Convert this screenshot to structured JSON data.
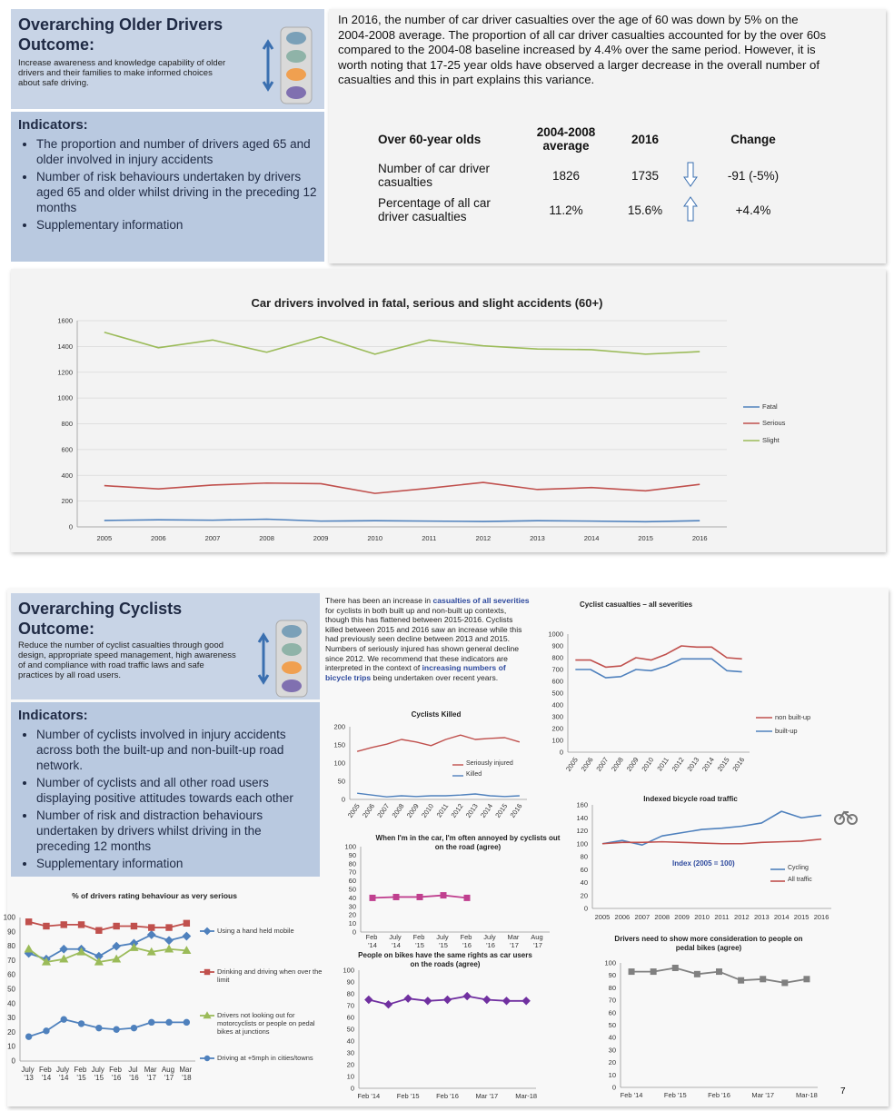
{
  "older_drivers": {
    "title": "Overarching Older Drivers Outcome:",
    "description": "Increase awareness and knowledge capability of older drivers and their families to make informed choices about safe driving.",
    "indicators_heading": "Indicators:",
    "indicators": [
      "The proportion and number of drivers aged 65 and older involved in injury accidents",
      "Number of risk behaviours undertaken by drivers aged 65 and older whilst driving in the preceding 12 months",
      "Supplementary information"
    ],
    "summary": "In 2016, the number of car driver casualties over the age of 60 was down by 5% on the 2004-2008 average. The proportion of all car driver casualties accounted for by the over 60s compared to the 2004-08 baseline increased by 4.4% over the same period.  However, it is worth noting that 17-25 year olds have observed a larger decrease in the overall number of casualties and this in part explains this variance.",
    "table": {
      "header": [
        "Over 60-year olds",
        "2004-2008 average",
        "2016",
        "Change"
      ],
      "rows": [
        [
          "Number of car driver casualties",
          "1826",
          "1735",
          "-91 (-5%)"
        ],
        [
          "Percentage of all car driver casualties",
          "11.2%",
          "15.6%",
          "+4.4%"
        ]
      ]
    }
  },
  "cyclists": {
    "title": "Overarching Cyclists Outcome:",
    "description": "Reduce the number of cyclist casualties through good design, appropriate speed management, high awareness of and compliance with road traffic laws and safe practices by all road users.",
    "indicators_heading": "Indicators:",
    "indicators": [
      "Number of cyclists involved in injury accidents across both the built-up and non-built-up road network.",
      "Number of cyclists and all other road users displaying positive attitudes towards each other",
      "Number of risk and distraction behaviours undertaken by drivers whilst driving in the preceding 12 months",
      "Supplementary information"
    ],
    "summary_parts": [
      "There has been an increase in ",
      "casualties of all severities",
      " for cyclists in both built up and non-built up contexts, though this has flattened between 2015-2016. Cyclists killed between 2015 and 2016 saw an increase while this had previously seen decline between 2013 and 2015. Numbers of seriously injured has shown general decline since 2012. We recommend that these indicators are interpreted in the context of ",
      "increasing numbers of bicycle trips",
      " being undertaken over recent years."
    ]
  },
  "page_number": "7",
  "chart_data": [
    {
      "type": "line",
      "title": "Car drivers involved in fatal, serious and slight accidents (60+)",
      "categories": [
        "2005",
        "2006",
        "2007",
        "2008",
        "2009",
        "2010",
        "2011",
        "2012",
        "2013",
        "2014",
        "2015",
        "2016"
      ],
      "series": [
        {
          "name": "Fatal",
          "color": "#4f81bd",
          "values": [
            50,
            55,
            52,
            60,
            45,
            48,
            45,
            42,
            48,
            45,
            40,
            48
          ]
        },
        {
          "name": "Serious",
          "color": "#c0504d",
          "values": [
            320,
            295,
            325,
            340,
            335,
            260,
            300,
            345,
            290,
            305,
            280,
            330
          ]
        },
        {
          "name": "Slight",
          "color": "#9bbb59",
          "values": [
            1510,
            1390,
            1450,
            1355,
            1475,
            1340,
            1450,
            1405,
            1380,
            1375,
            1340,
            1360
          ]
        }
      ],
      "ylim": [
        0,
        1600
      ],
      "yticks": [
        0,
        200,
        400,
        600,
        800,
        1000,
        1200,
        1400,
        1600
      ],
      "grid": true,
      "legend": "right"
    },
    {
      "type": "line",
      "title": "Cyclist casualties – all severities",
      "categories": [
        "2005",
        "2006",
        "2007",
        "2008",
        "2009",
        "2010",
        "2011",
        "2012",
        "2013",
        "2014",
        "2015",
        "2016"
      ],
      "series": [
        {
          "name": "non built-up",
          "color": "#c0504d",
          "values": [
            780,
            780,
            720,
            730,
            800,
            780,
            830,
            900,
            890,
            890,
            800,
            790
          ]
        },
        {
          "name": "built-up",
          "color": "#4f81bd",
          "values": [
            700,
            700,
            630,
            640,
            700,
            690,
            730,
            790,
            790,
            790,
            690,
            680
          ]
        }
      ],
      "ylim": [
        0,
        1000
      ],
      "yticks": [
        0,
        100,
        200,
        300,
        400,
        500,
        600,
        700,
        800,
        900,
        1000
      ],
      "grid": false,
      "legend": "right"
    },
    {
      "type": "line",
      "title": "Cyclists Killed",
      "categories": [
        "2005",
        "2006",
        "2007",
        "2008",
        "2009",
        "2010",
        "2011",
        "2012",
        "2013",
        "2014",
        "2015",
        "2016"
      ],
      "series": [
        {
          "name": "Seriously injured",
          "color": "#c0504d",
          "values": [
            132,
            143,
            152,
            165,
            158,
            148,
            165,
            177,
            165,
            168,
            170,
            158
          ]
        },
        {
          "name": "Killed",
          "color": "#4f81bd",
          "values": [
            17,
            12,
            7,
            10,
            8,
            10,
            10,
            12,
            15,
            10,
            8,
            10
          ]
        }
      ],
      "ylim": [
        0,
        200
      ],
      "yticks": [
        0,
        50,
        100,
        150,
        200
      ],
      "grid": false,
      "legend": "right"
    },
    {
      "type": "line",
      "title": "Indexed bicycle road traffic",
      "annotation": "Index (2005 = 100)",
      "categories": [
        "2005",
        "2006",
        "2007",
        "2008",
        "2009",
        "2010",
        "2011",
        "2012",
        "2013",
        "2014",
        "2015",
        "2016"
      ],
      "series": [
        {
          "name": "Cycling",
          "color": "#4f81bd",
          "values": [
            100,
            105,
            98,
            112,
            117,
            122,
            124,
            127,
            132,
            150,
            140,
            144
          ]
        },
        {
          "name": "All traffic",
          "color": "#c0504d",
          "values": [
            100,
            102,
            102,
            103,
            102,
            101,
            100,
            100,
            102,
            103,
            104,
            107
          ]
        }
      ],
      "ylim": [
        0,
        160
      ],
      "yticks": [
        0,
        20,
        40,
        60,
        80,
        100,
        120,
        140,
        160
      ],
      "grid": false,
      "legend": "bottom-right"
    },
    {
      "type": "line",
      "title": "% of drivers rating behaviour as very serious",
      "categories": [
        "July '13",
        "Feb '14",
        "July '14",
        "Feb '15",
        "July '15",
        "Feb '16",
        "Jul '16",
        "Mar '17",
        "Aug '17",
        "Mar '18"
      ],
      "series": [
        {
          "name": "Using a hand held mobile",
          "color": "#4f81bd",
          "marker": "diamond",
          "values": [
            75,
            71,
            78,
            78,
            73,
            80,
            82,
            88,
            84,
            87
          ]
        },
        {
          "name": "Drinking and driving when over the limit",
          "color": "#c0504d",
          "marker": "square",
          "values": [
            97,
            94,
            95,
            95,
            91,
            94,
            94,
            93,
            93,
            96
          ]
        },
        {
          "name": "Drivers not looking out for motorcyclists or people on pedal bikes at junctions",
          "color": "#9bbb59",
          "marker": "triangle",
          "values": [
            78,
            69,
            71,
            76,
            69,
            71,
            79,
            76,
            78,
            77
          ]
        },
        {
          "name": "Driving at +5mph in cities/towns",
          "color": "#4f81bd",
          "marker": "circle",
          "values": [
            17,
            21,
            29,
            26,
            23,
            22,
            23,
            27,
            27,
            27
          ]
        }
      ],
      "ylim": [
        0,
        100
      ],
      "yticks": [
        0,
        10,
        20,
        30,
        40,
        50,
        60,
        70,
        80,
        90,
        100
      ],
      "grid": false,
      "legend": "right"
    },
    {
      "type": "line",
      "title": "When I'm in the car, I'm often annoyed by cyclists out on the road (agree)",
      "categories": [
        "Feb '14",
        "July '14",
        "Feb '15",
        "July '15",
        "Feb '16",
        "July '16",
        "Mar '17",
        "Aug '17"
      ],
      "series": [
        {
          "color": "#c0408f",
          "marker": "square",
          "values": [
            40,
            41,
            41,
            43,
            40,
            null,
            null,
            null
          ]
        }
      ],
      "ylim": [
        0,
        100
      ],
      "yticks": [
        0,
        10,
        20,
        30,
        40,
        50,
        60,
        70,
        80,
        90,
        100
      ],
      "grid": false
    },
    {
      "type": "line",
      "title": "People on bikes have the same rights as car users on the roads (agree)",
      "categories": [
        "Feb '14",
        null,
        "Feb '15",
        null,
        "Feb '16",
        null,
        "Mar '17",
        null,
        "Mar-18"
      ],
      "series": [
        {
          "color": "#7030a0",
          "marker": "diamond",
          "values": [
            75,
            71,
            76,
            74,
            75,
            78,
            75,
            74,
            74
          ]
        }
      ],
      "ylim": [
        0,
        100
      ],
      "yticks": [
        0,
        10,
        20,
        30,
        40,
        50,
        60,
        70,
        80,
        90,
        100
      ],
      "grid": false
    },
    {
      "type": "line",
      "title": "Drivers need to show more consideration to people on pedal bikes (agree)",
      "categories": [
        "Feb '14",
        null,
        "Feb '15",
        null,
        "Feb '16",
        null,
        "Mar '17",
        null,
        "Mar-18"
      ],
      "series": [
        {
          "color": "#808080",
          "marker": "square",
          "values": [
            93,
            93,
            96,
            91,
            93,
            86,
            87,
            84,
            87
          ]
        }
      ],
      "ylim": [
        0,
        100
      ],
      "yticks": [
        0,
        10,
        20,
        30,
        40,
        50,
        60,
        70,
        80,
        90,
        100
      ],
      "grid": false
    }
  ]
}
